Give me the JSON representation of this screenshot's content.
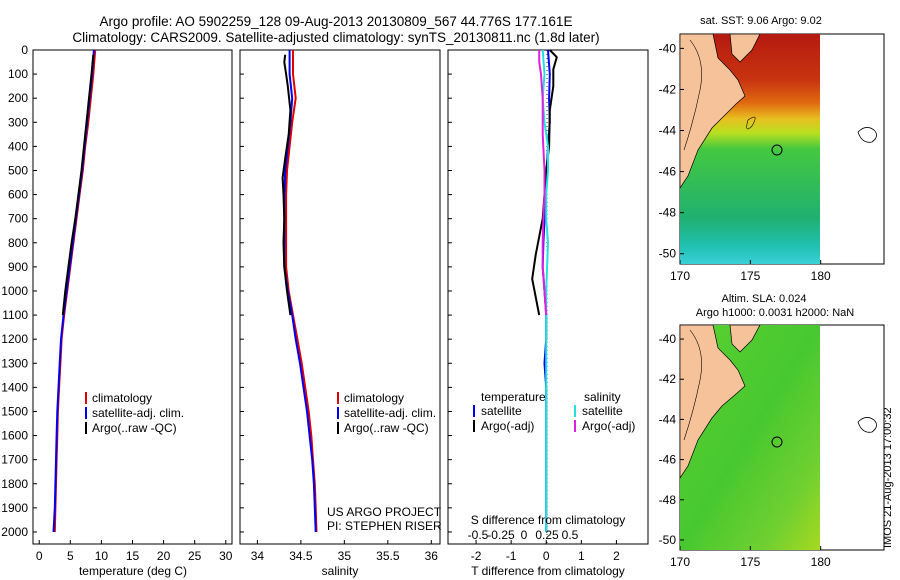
{
  "header": {
    "title_line1": "Argo profile: AO 5902259_128 09-Aug-2013 20130809_567 44.776S 177.161E",
    "title_line2": "Climatology: CARS2009. Satellite-adjusted climatology: synTS_20130811.nc (1.8d later)"
  },
  "colors": {
    "climatology": "#e00000",
    "satellite": "#0000ee",
    "argo": "#000000",
    "satellite_salinity": "#22e0e0",
    "argo_salinity_adj": "#e020e0",
    "land": "#f5c29a"
  },
  "chart_data": [
    {
      "id": "temperature",
      "type": "line",
      "xlabel": "temperature (deg C)",
      "ylabel": "",
      "xlim": [
        -1,
        31
      ],
      "ylim": [
        2050,
        0
      ],
      "xticks": [
        0,
        5,
        10,
        15,
        20,
        25,
        30
      ],
      "yticks": [
        0,
        100,
        200,
        300,
        400,
        500,
        600,
        700,
        800,
        900,
        1000,
        1100,
        1200,
        1300,
        1400,
        1500,
        1600,
        1700,
        1800,
        1900,
        2000
      ],
      "legend": [
        "climatology",
        "satellite-adj. clim.",
        "Argo(..raw -QC)"
      ],
      "series": [
        {
          "name": "climatology",
          "color": "#e00000",
          "points": [
            [
              9.0,
              0
            ],
            [
              8.7,
              100
            ],
            [
              8.3,
              200
            ],
            [
              7.9,
              300
            ],
            [
              7.4,
              400
            ],
            [
              7.0,
              500
            ],
            [
              6.5,
              600
            ],
            [
              6.0,
              700
            ],
            [
              5.5,
              800
            ],
            [
              5.0,
              900
            ],
            [
              4.5,
              1000
            ],
            [
              4.0,
              1100
            ],
            [
              3.6,
              1200
            ],
            [
              3.4,
              1300
            ],
            [
              3.2,
              1400
            ],
            [
              3.0,
              1500
            ],
            [
              2.9,
              1600
            ],
            [
              2.8,
              1700
            ],
            [
              2.7,
              1800
            ],
            [
              2.6,
              1900
            ],
            [
              2.5,
              2000
            ]
          ]
        },
        {
          "name": "satellite-adj. clim.",
          "color": "#0000ee",
          "points": [
            [
              8.8,
              0
            ],
            [
              8.5,
              100
            ],
            [
              8.1,
              200
            ],
            [
              7.7,
              300
            ],
            [
              7.3,
              400
            ],
            [
              6.9,
              500
            ],
            [
              6.4,
              600
            ],
            [
              5.9,
              700
            ],
            [
              5.4,
              800
            ],
            [
              4.9,
              900
            ],
            [
              4.4,
              1000
            ],
            [
              3.9,
              1100
            ],
            [
              3.5,
              1200
            ],
            [
              3.3,
              1300
            ],
            [
              3.1,
              1400
            ],
            [
              2.9,
              1500
            ],
            [
              2.8,
              1600
            ],
            [
              2.7,
              1700
            ],
            [
              2.6,
              1800
            ],
            [
              2.5,
              1900
            ],
            [
              2.3,
              2000
            ]
          ]
        },
        {
          "name": "Argo(..raw -QC)",
          "color": "#000000",
          "points": [
            [
              8.7,
              20
            ],
            [
              8.4,
              100
            ],
            [
              8.0,
              200
            ],
            [
              7.6,
              300
            ],
            [
              7.2,
              400
            ],
            [
              6.8,
              500
            ],
            [
              6.3,
              600
            ],
            [
              5.8,
              700
            ],
            [
              5.2,
              800
            ],
            [
              4.7,
              900
            ],
            [
              4.2,
              1000
            ],
            [
              3.8,
              1100
            ]
          ]
        }
      ]
    },
    {
      "id": "salinity",
      "type": "line",
      "xlabel": "salinity",
      "ylabel": "",
      "xlim": [
        33.8,
        36.1
      ],
      "ylim": [
        2050,
        0
      ],
      "xticks": [
        34,
        34.5,
        35,
        35.5,
        36
      ],
      "legend": [
        "climatology",
        "satellite-adj. clim.",
        "Argo(..raw -QC)"
      ],
      "annotation": [
        "US ARGO PROJECT",
        "PI: STEPHEN RISER"
      ],
      "series": [
        {
          "name": "climatology",
          "color": "#e00000",
          "points": [
            [
              34.41,
              0
            ],
            [
              34.41,
              100
            ],
            [
              34.44,
              200
            ],
            [
              34.4,
              300
            ],
            [
              34.37,
              400
            ],
            [
              34.34,
              500
            ],
            [
              34.33,
              600
            ],
            [
              34.33,
              700
            ],
            [
              34.33,
              800
            ],
            [
              34.33,
              900
            ],
            [
              34.36,
              1000
            ],
            [
              34.41,
              1100
            ],
            [
              34.46,
              1200
            ],
            [
              34.51,
              1300
            ],
            [
              34.55,
              1400
            ],
            [
              34.59,
              1500
            ],
            [
              34.62,
              1600
            ],
            [
              34.64,
              1700
            ],
            [
              34.66,
              1800
            ],
            [
              34.67,
              1900
            ],
            [
              34.68,
              2000
            ]
          ]
        },
        {
          "name": "satellite-adj. clim.",
          "color": "#0000ee",
          "points": [
            [
              34.37,
              0
            ],
            [
              34.37,
              100
            ],
            [
              34.4,
              200
            ],
            [
              34.38,
              300
            ],
            [
              34.35,
              400
            ],
            [
              34.32,
              500
            ],
            [
              34.31,
              600
            ],
            [
              34.31,
              700
            ],
            [
              34.31,
              800
            ],
            [
              34.31,
              900
            ],
            [
              34.35,
              1000
            ],
            [
              34.4,
              1100
            ],
            [
              34.44,
              1200
            ],
            [
              34.49,
              1300
            ],
            [
              34.53,
              1400
            ],
            [
              34.57,
              1500
            ],
            [
              34.6,
              1600
            ],
            [
              34.63,
              1700
            ],
            [
              34.65,
              1800
            ],
            [
              34.66,
              1900
            ],
            [
              34.67,
              2000
            ]
          ]
        },
        {
          "name": "Argo(..raw -QC)",
          "color": "#000000",
          "points": [
            [
              34.32,
              20
            ],
            [
              34.31,
              50
            ],
            [
              34.33,
              100
            ],
            [
              34.35,
              150
            ],
            [
              34.38,
              250
            ],
            [
              34.36,
              350
            ],
            [
              34.32,
              450
            ],
            [
              34.29,
              530
            ],
            [
              34.3,
              600
            ],
            [
              34.31,
              700
            ],
            [
              34.3,
              800
            ],
            [
              34.31,
              900
            ],
            [
              34.34,
              1000
            ],
            [
              34.38,
              1100
            ]
          ]
        }
      ]
    },
    {
      "id": "difference",
      "type": "line",
      "xlabel": "T difference from climatology",
      "top_axis_label": "S difference from climatology",
      "xlim": [
        -2.8,
        2.9
      ],
      "ylim": [
        2050,
        0
      ],
      "xticks": [
        -2,
        -1,
        0,
        1,
        2
      ],
      "top_ticks": [
        -0.5,
        -0.25,
        0,
        0.25,
        0.5
      ],
      "legend_headers": [
        "temperature",
        "salinity"
      ],
      "legend": [
        "satellite",
        "Argo(-adj)",
        "satellite",
        "Argo(-adj)"
      ],
      "series": [
        {
          "name": "satellite",
          "color": "#0000ee",
          "points": [
            [
              0.05,
              0
            ],
            [
              0.1,
              100
            ],
            [
              0.08,
              200
            ],
            [
              0.1,
              300
            ],
            [
              0.05,
              400
            ],
            [
              0.02,
              500
            ],
            [
              -0.05,
              600
            ],
            [
              -0.05,
              700
            ],
            [
              -0.08,
              800
            ],
            [
              -0.1,
              900
            ],
            [
              -0.05,
              1000
            ],
            [
              0.0,
              1100
            ],
            [
              0.0,
              1200
            ],
            [
              -0.05,
              1300
            ],
            [
              0.0,
              1400
            ],
            [
              0.0,
              2000
            ]
          ]
        },
        {
          "name": "Argo(-adj)",
          "color": "#000000",
          "points": [
            [
              0.1,
              0
            ],
            [
              0.3,
              30
            ],
            [
              0.2,
              80
            ],
            [
              0.2,
              150
            ],
            [
              0.1,
              250
            ],
            [
              0.08,
              400
            ],
            [
              0.0,
              500
            ],
            [
              -0.05,
              600
            ],
            [
              -0.1,
              700
            ],
            [
              -0.3,
              850
            ],
            [
              -0.4,
              950
            ],
            [
              -0.2,
              1100
            ]
          ]
        },
        {
          "name": "satellite",
          "color": "#22e0e0",
          "points": [
            [
              -0.1,
              0
            ],
            [
              -0.05,
              100
            ],
            [
              -0.1,
              200
            ],
            [
              -0.05,
              300
            ],
            [
              0.05,
              400
            ],
            [
              0.05,
              500
            ],
            [
              0.0,
              600
            ],
            [
              0.0,
              700
            ],
            [
              0.05,
              800
            ],
            [
              0.0,
              1000
            ],
            [
              0.0,
              1100
            ],
            [
              0.0,
              2000
            ]
          ]
        },
        {
          "name": "Argo(-adj)",
          "color": "#e020e0",
          "points": [
            [
              -0.2,
              0
            ],
            [
              -0.2,
              50
            ],
            [
              -0.15,
              100
            ],
            [
              -0.1,
              200
            ],
            [
              -0.1,
              350
            ],
            [
              -0.05,
              500
            ],
            [
              -0.05,
              600
            ],
            [
              -0.08,
              700
            ],
            [
              -0.1,
              800
            ],
            [
              -0.1,
              900
            ],
            [
              -0.05,
              1000
            ],
            [
              0.0,
              1100
            ]
          ]
        }
      ]
    },
    {
      "id": "sst_map",
      "type": "heatmap",
      "title": "sat. SST: 9.06 Argo: 9.02",
      "xticks": [
        170,
        175,
        180
      ],
      "yticks": [
        -40,
        -42,
        -44,
        -46,
        -48,
        -50
      ],
      "xlim": [
        170,
        184.5
      ],
      "ylim": [
        -50.5,
        -39.3
      ]
    },
    {
      "id": "sla_map",
      "type": "heatmap",
      "title_line1": "Altim. SLA: 0.024",
      "title_line2": "Argo h1000: 0.0031 h2000: NaN",
      "xticks": [
        170,
        175,
        180
      ],
      "yticks": [
        -40,
        -42,
        -44,
        -46,
        -48,
        -50
      ],
      "xlim": [
        170,
        184.5
      ],
      "ylim": [
        -50.5,
        -39.3
      ]
    }
  ],
  "timestamp": "IMOS 21-Aug-2013 17:00:32"
}
